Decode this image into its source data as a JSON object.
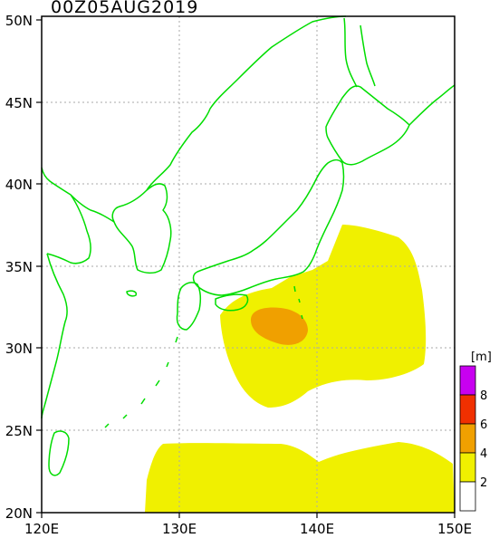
{
  "title": "00Z05AUG2019",
  "map": {
    "lon_range": [
      120,
      150
    ],
    "lat_range": [
      20,
      50
    ],
    "lon_ticks": [
      "120E",
      "130E",
      "140E",
      "150E"
    ],
    "lat_ticks": [
      "20N",
      "25N",
      "30N",
      "35N",
      "40N",
      "45N",
      "50N"
    ],
    "gridlines": true,
    "coastline_color": "#00dd00"
  },
  "legend": {
    "unit": "[m]",
    "levels": [
      "2",
      "4",
      "6",
      "8"
    ],
    "colors": [
      "#ffffff",
      "#f0f000",
      "#f0a000",
      "#f03000",
      "#c800f0"
    ]
  }
}
